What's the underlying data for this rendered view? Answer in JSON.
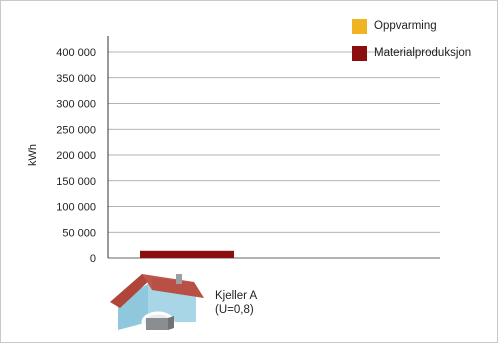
{
  "chart_data": {
    "type": "bar",
    "stacked": true,
    "ylabel": "kWh",
    "ylim": [
      0,
      400000
    ],
    "yticks": [
      0,
      50000,
      100000,
      150000,
      200000,
      250000,
      300000,
      350000,
      400000
    ],
    "ytick_labels": [
      "0",
      "50 000",
      "100 000",
      "150 000",
      "200 000",
      "250 000",
      "300 000",
      "350 000",
      "400 000"
    ],
    "grid": true,
    "legend_placement": "top-right",
    "categories": [
      "Kjeller A"
    ],
    "category_sublabels": [
      "(U=0,8)"
    ],
    "series": [
      {
        "name": "Oppvarming",
        "color": "#f0b323",
        "values": [
          0
        ]
      },
      {
        "name": "Materialproduksjon",
        "color": "#8b0f0f",
        "values": [
          14000
        ]
      }
    ]
  },
  "category_icon": "house-with-basement-icon"
}
